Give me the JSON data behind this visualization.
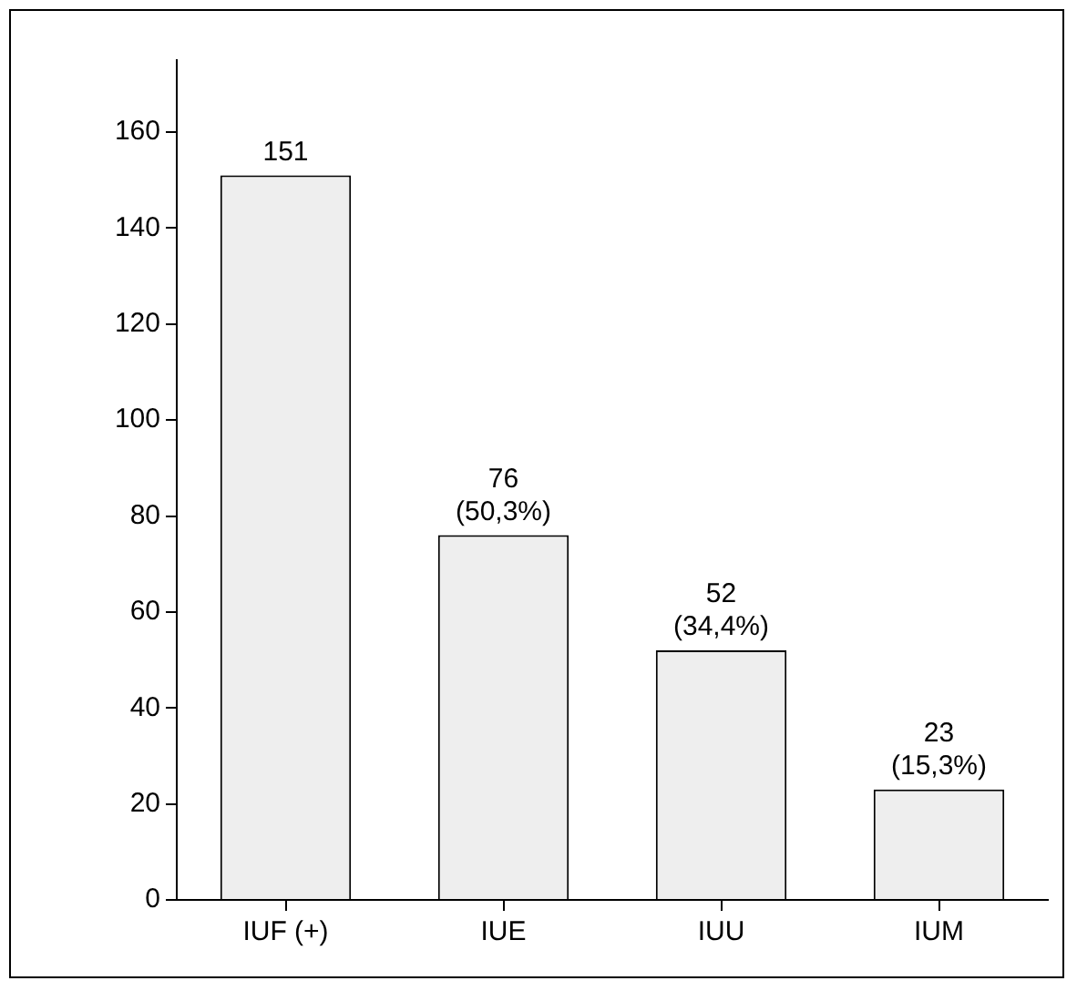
{
  "chart_data": {
    "type": "bar",
    "categories": [
      "IUF (+)",
      "IUE",
      "IUU",
      "IUM"
    ],
    "values": [
      151,
      76,
      52,
      23
    ],
    "value_labels": [
      "151",
      "76\n(50,3%)",
      "52\n(34,4%)",
      "23\n(15,3%)"
    ],
    "color": "#eeeeee",
    "ylim": [
      0,
      175
    ],
    "yticks": [
      0,
      20,
      40,
      60,
      80,
      100,
      120,
      140,
      160
    ],
    "grid": false,
    "legend": false
  }
}
